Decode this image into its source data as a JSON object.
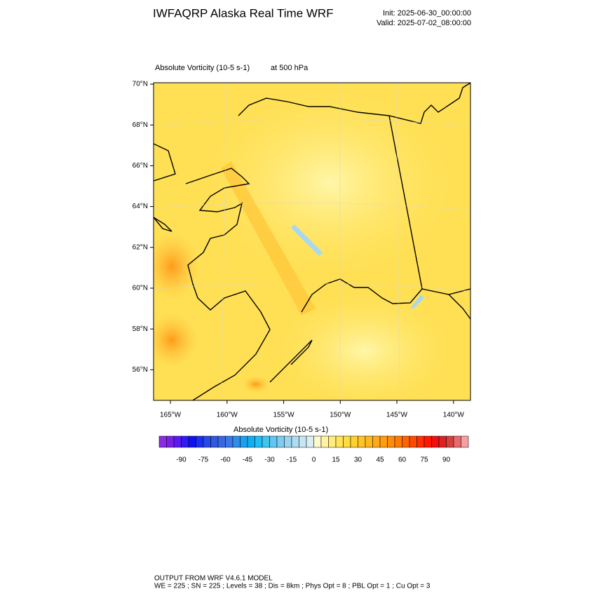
{
  "header": {
    "title": "IWFAQRP Alaska Real Time WRF",
    "init": "Init: 2025-06-30_00:00:00",
    "valid": "Valid: 2025-07-02_08:00:00"
  },
  "map": {
    "field": "Absolute Vorticity   (10-5 s-1)",
    "level": "at   500 hPa",
    "lat_lim": [
      54.5,
      70.07
    ],
    "lat_ticks": [
      {
        "value": 70,
        "label": "70°N"
      },
      {
        "value": 68,
        "label": "68°N"
      },
      {
        "value": 66,
        "label": "66°N"
      },
      {
        "value": 64,
        "label": "64°N"
      },
      {
        "value": 62,
        "label": "62°N"
      },
      {
        "value": 60,
        "label": "60°N"
      },
      {
        "value": 58,
        "label": "58°N"
      },
      {
        "value": 56,
        "label": "56°N"
      }
    ],
    "lon_lim": [
      -166.49,
      -138.5
    ],
    "lon_ticks": [
      {
        "value": -165,
        "label": "165°W"
      },
      {
        "value": -160,
        "label": "160°W"
      },
      {
        "value": -155,
        "label": "155°W"
      },
      {
        "value": -150,
        "label": "150°W"
      },
      {
        "value": -145,
        "label": "145°W"
      },
      {
        "value": -140,
        "label": "140°W"
      }
    ]
  },
  "colorbar": {
    "title": "Absolute Vorticity  (10-5 s-1)",
    "range": [
      -105,
      105
    ],
    "ticks": [
      -90,
      -75,
      -60,
      -45,
      -30,
      -15,
      0,
      15,
      30,
      45,
      60,
      75,
      90
    ],
    "colors": [
      "#8a2be2",
      "#7b1fe8",
      "#5a1af0",
      "#2f1cf5",
      "#1010f5",
      "#1a30f0",
      "#2848e8",
      "#3058e0",
      "#3a66e0",
      "#3a78e8",
      "#2f8ce8",
      "#1aa0f0",
      "#10b0f0",
      "#20bef5",
      "#40c4f0",
      "#60c8f0",
      "#80ccf0",
      "#9ad4f0",
      "#b0dcf0",
      "#c8e6f2",
      "#dceef5",
      "#fffacd",
      "#fff3a0",
      "#ffec80",
      "#ffe45a",
      "#ffdc40",
      "#ffd030",
      "#ffc428",
      "#ffb820",
      "#ffaa18",
      "#ff9c10",
      "#ff8c08",
      "#ff7c00",
      "#ff6400",
      "#ff4a00",
      "#ff3000",
      "#ff1800",
      "#f01010",
      "#dd2020",
      "#d84040",
      "#e86a6a",
      "#f5a0a0"
    ]
  },
  "footer": {
    "line1": "OUTPUT FROM WRF V4.6.1 MODEL",
    "line2": "WE = 225 ; SN = 225 ; Levels = 38 ; Dis = 8km ; Phys Opt = 8 ; PBL Opt = 1 ; Cu Opt = 3"
  }
}
